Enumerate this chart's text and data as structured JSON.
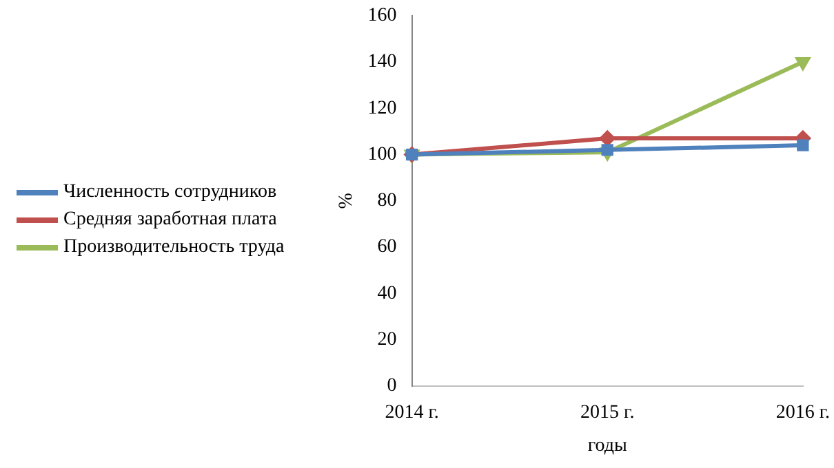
{
  "chart_data": {
    "type": "line",
    "xlabel": "годы",
    "ylabel": "%",
    "categories": [
      "2014 г.",
      "2015 г.",
      "2016 г."
    ],
    "ylim": [
      0,
      160
    ],
    "yticks": [
      0,
      20,
      40,
      60,
      80,
      100,
      120,
      140,
      160
    ],
    "grid": false,
    "legend": "left",
    "series": [
      {
        "name": "Численность сотрудников",
        "color": "#4f81bd",
        "marker": "square",
        "values": [
          100,
          102,
          104
        ]
      },
      {
        "name": "Средняя заработная плата",
        "color": "#c0504d",
        "marker": "diamond",
        "values": [
          100,
          107,
          107
        ]
      },
      {
        "name": "Производительность труда",
        "color": "#9bbb59",
        "marker": "triangle",
        "values": [
          100,
          101,
          140
        ]
      }
    ]
  }
}
